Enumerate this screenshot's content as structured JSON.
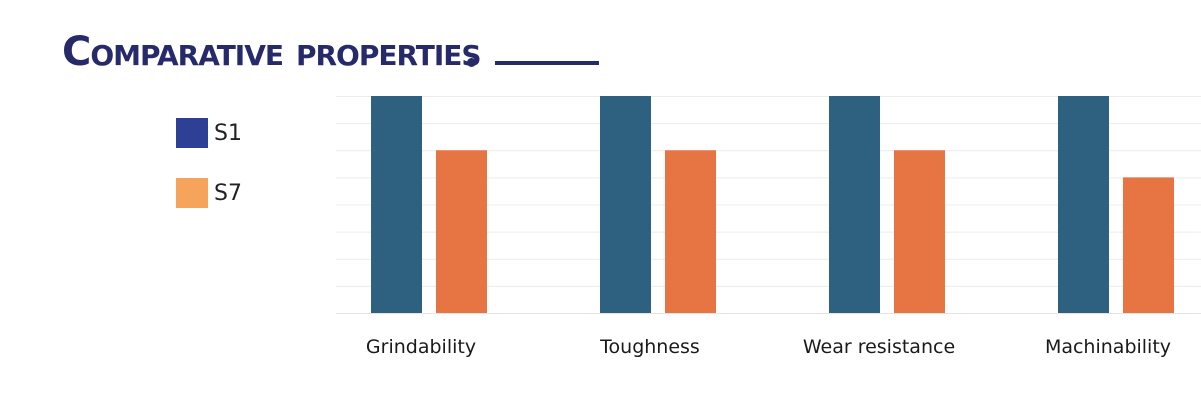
{
  "chart_data": {
    "type": "bar",
    "title": "Comparative properties",
    "categories": [
      "Grindability",
      "Toughness",
      "Wear resistance",
      "Machinability"
    ],
    "series": [
      {
        "name": "S1",
        "values": [
          8,
          8,
          8,
          8
        ],
        "color": "#2e6080"
      },
      {
        "name": "S7",
        "values": [
          6,
          6,
          6,
          5
        ],
        "color": "#e77443"
      }
    ],
    "legend_swatch_colors": [
      "#2e3f96",
      "#f6a35c"
    ],
    "ylim": [
      0,
      8
    ],
    "grid": true,
    "legend_position": "left"
  },
  "colors": {
    "title": "#26296a",
    "grid": "#ececec"
  }
}
